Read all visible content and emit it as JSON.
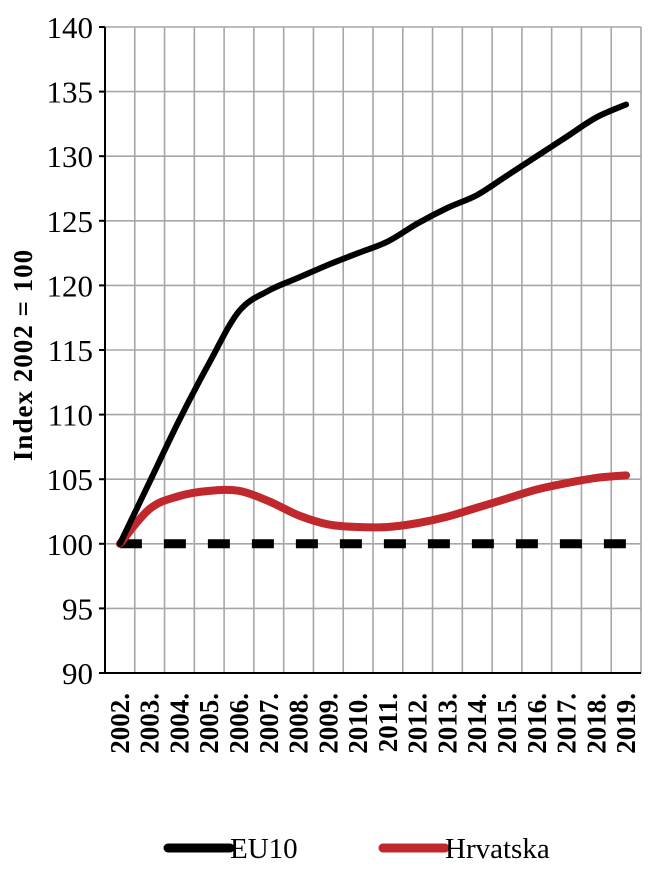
{
  "chart_data": {
    "type": "line",
    "title": "",
    "xlabel": "",
    "ylabel": "Index 2002 = 100",
    "x": [
      "2002.",
      "2003.",
      "2004.",
      "2005.",
      "2006.",
      "2007.",
      "2008.",
      "2009.",
      "2010.",
      "2011.",
      "2012.",
      "2013.",
      "2014.",
      "2015.",
      "2016.",
      "2017.",
      "2018.",
      "2019."
    ],
    "yticks": [
      90,
      95,
      100,
      105,
      110,
      115,
      120,
      125,
      130,
      135,
      140
    ],
    "ylim": [
      90,
      140
    ],
    "grid": true,
    "legend_position": "bottom",
    "reference_line": {
      "value": 100,
      "style": "dashed",
      "color": "#000000"
    },
    "series": [
      {
        "name": "EU10",
        "color": "#000000",
        "values": [
          100,
          104.8,
          109.6,
          114.0,
          118.0,
          119.6,
          120.6,
          121.6,
          122.5,
          123.4,
          124.8,
          126.0,
          127.0,
          128.5,
          130.0,
          131.5,
          133.0,
          134.0
        ]
      },
      {
        "name": "Hrvatska",
        "color": "#c0282d",
        "values": [
          100,
          102.7,
          103.7,
          104.1,
          104.1,
          103.3,
          102.2,
          101.5,
          101.3,
          101.3,
          101.6,
          102.1,
          102.8,
          103.5,
          104.2,
          104.7,
          105.1,
          105.3
        ]
      }
    ]
  }
}
